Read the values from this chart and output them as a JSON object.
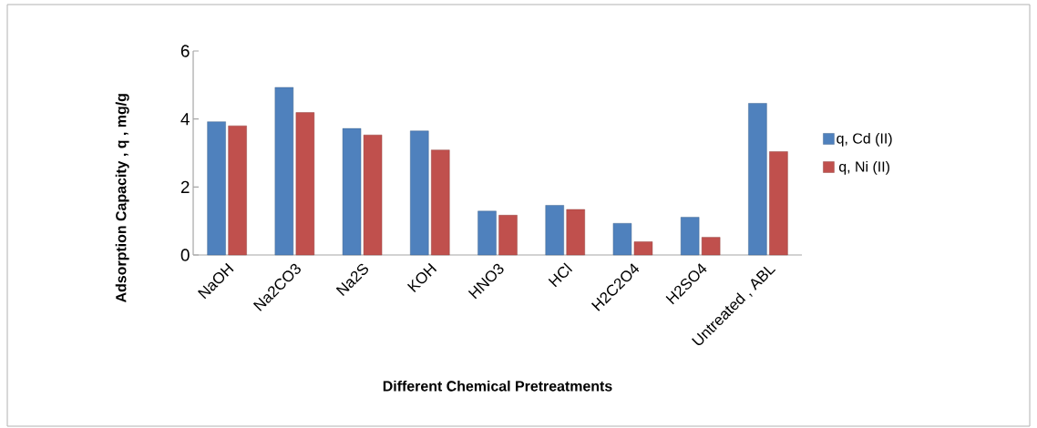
{
  "chart_data": {
    "type": "bar",
    "xlabel": "Different Chemical  Pretreatments",
    "ylabel": "Adsorption Capacity , q , mg/g",
    "categories": [
      "NaOH",
      "Na2CO3",
      "Na2S",
      "KOH",
      "HNO3",
      "HCl",
      "H2C2O4",
      "H2SO4",
      "Untreated  , ABL"
    ],
    "series": [
      {
        "name": "q,  Cd (II)",
        "color": "#4f81bd",
        "values": [
          3.92,
          4.93,
          3.72,
          3.65,
          1.29,
          1.46,
          0.93,
          1.11,
          4.46
        ]
      },
      {
        "name": "q, Ni (II)",
        "color": "#c0504d",
        "values": [
          3.8,
          4.19,
          3.53,
          3.09,
          1.17,
          1.34,
          0.39,
          0.52,
          3.04
        ]
      }
    ],
    "ylim": [
      0,
      6
    ],
    "yticks": [
      0,
      2,
      4,
      6
    ],
    "grid": false,
    "legend": "right"
  }
}
